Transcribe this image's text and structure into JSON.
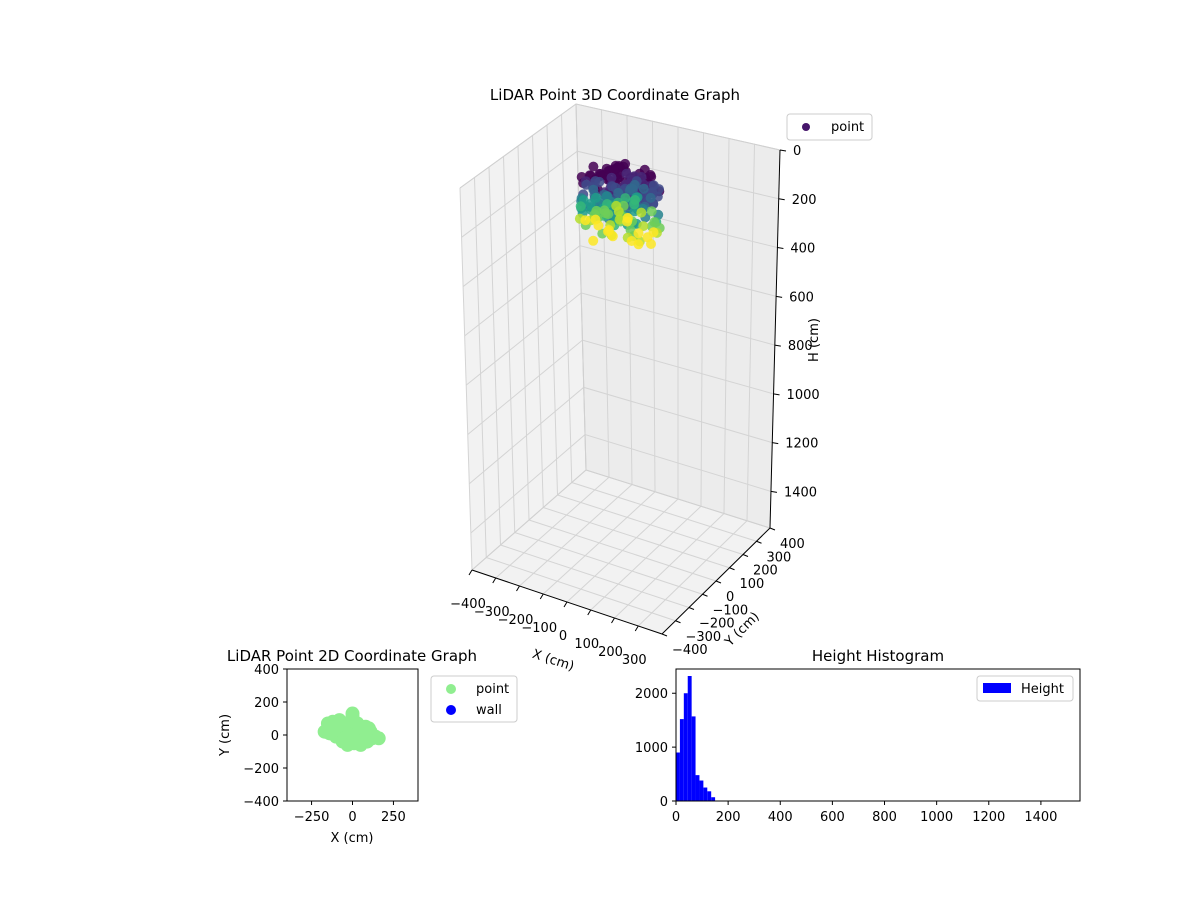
{
  "chart_data": [
    {
      "type": "scatter",
      "projection": "3d",
      "title": "LiDAR Point 3D Coordinate Graph",
      "xlabel": "X (cm)",
      "ylabel": "Y (cm)",
      "zlabel": "H (cm)",
      "xticks": [
        "−400",
        "−300",
        "−200",
        "−100",
        "0",
        "100",
        "200",
        "300"
      ],
      "yticks": [
        "−400",
        "−300",
        "−200",
        "−100",
        "0",
        "100",
        "200",
        "300",
        "400"
      ],
      "zticks": [
        "0",
        "200",
        "400",
        "600",
        "800",
        "1000",
        "1200",
        "1400"
      ],
      "xlim": [
        -400,
        400
      ],
      "ylim": [
        -400,
        400
      ],
      "zlim": [
        0,
        1550
      ],
      "z_inverted": true,
      "colormap": "viridis",
      "grid": true,
      "legend": {
        "entries": [
          {
            "name": "point",
            "color": "#46166b"
          }
        ],
        "placement": "top-right"
      },
      "series": [
        {
          "name": "point",
          "cluster": {
            "x_range": [
              -150,
              150
            ],
            "y_range": [
              -100,
              130
            ],
            "h_range": [
              0,
              220
            ]
          }
        }
      ]
    },
    {
      "type": "scatter",
      "title": "LiDAR Point 2D Coordinate Graph",
      "xlabel": "X (cm)",
      "ylabel": "Y (cm)",
      "xticks": [
        "−250",
        "0",
        "250"
      ],
      "yticks": [
        "−400",
        "−200",
        "0",
        "200",
        "400"
      ],
      "xlim": [
        -400,
        400
      ],
      "ylim": [
        -400,
        400
      ],
      "legend": {
        "placement": "outside-right"
      },
      "series": [
        {
          "name": "point",
          "color": "#90ee90",
          "points": [
            [
              -170,
              20
            ],
            [
              -150,
              70
            ],
            [
              -140,
              10
            ],
            [
              -120,
              80
            ],
            [
              -110,
              30
            ],
            [
              -100,
              -10
            ],
            [
              -80,
              90
            ],
            [
              -70,
              40
            ],
            [
              -60,
              -40
            ],
            [
              -40,
              60
            ],
            [
              -30,
              -60
            ],
            [
              -10,
              30
            ],
            [
              0,
              110
            ],
            [
              0,
              130
            ],
            [
              10,
              -50
            ],
            [
              20,
              20
            ],
            [
              30,
              70
            ],
            [
              50,
              -60
            ],
            [
              60,
              10
            ],
            [
              80,
              50
            ],
            [
              90,
              -40
            ],
            [
              110,
              20
            ],
            [
              120,
              -20
            ],
            [
              140,
              -10
            ],
            [
              160,
              -20
            ],
            [
              -50,
              -20
            ],
            [
              40,
              -20
            ],
            [
              -20,
              0
            ],
            [
              70,
              -30
            ],
            [
              100,
              40
            ]
          ]
        },
        {
          "name": "wall",
          "color": "#0000ff",
          "points": []
        }
      ]
    },
    {
      "type": "bar",
      "subtype": "histogram",
      "title": "Height Histogram",
      "xlabel": "",
      "ylabel": "",
      "xticks": [
        "0",
        "200",
        "400",
        "600",
        "800",
        "1000",
        "1200",
        "1400"
      ],
      "yticks": [
        "0",
        "1000",
        "2000"
      ],
      "xlim": [
        0,
        1550
      ],
      "ylim": [
        0,
        2450
      ],
      "bin_width": 15,
      "legend": {
        "placement": "top-right"
      },
      "series": [
        {
          "name": "Height",
          "color": "#0000ff",
          "bins": [
            0,
            15,
            30,
            45,
            60,
            75,
            90,
            105,
            120,
            135
          ],
          "values": [
            900,
            1520,
            2000,
            2320,
            1570,
            480,
            380,
            250,
            180,
            70
          ]
        }
      ]
    }
  ]
}
